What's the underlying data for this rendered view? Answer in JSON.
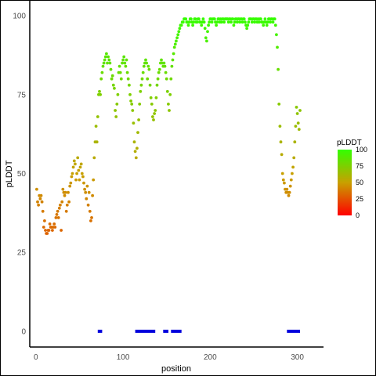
{
  "chart_data": {
    "type": "scatter",
    "xlabel": "position",
    "ylabel": "pLDDT",
    "xlim": [
      -7,
      330
    ],
    "ylim": [
      -5,
      105
    ],
    "xticks": [
      "0",
      "100",
      "200",
      "300"
    ],
    "yticks": [
      "0",
      "25",
      "50",
      "75",
      "100"
    ],
    "grid": false,
    "legend": {
      "title": "pLDDT",
      "placement": "right",
      "labels": [
        "100",
        "75",
        "50",
        "25",
        "0"
      ],
      "colors": {
        "low": "#ff0000",
        "mid": "#c8a000",
        "high": "#33ff00"
      }
    },
    "points": [
      [
        1,
        45
      ],
      [
        2,
        41
      ],
      [
        3,
        40
      ],
      [
        4,
        43
      ],
      [
        5,
        42
      ],
      [
        6,
        43
      ],
      [
        7,
        41
      ],
      [
        8,
        38
      ],
      [
        9,
        33
      ],
      [
        10,
        35
      ],
      [
        11,
        32
      ],
      [
        12,
        31
      ],
      [
        13,
        31
      ],
      [
        14,
        32
      ],
      [
        15,
        32
      ],
      [
        16,
        34
      ],
      [
        17,
        33
      ],
      [
        18,
        33
      ],
      [
        19,
        32
      ],
      [
        20,
        33
      ],
      [
        21,
        34
      ],
      [
        22,
        33
      ],
      [
        23,
        36
      ],
      [
        24,
        37
      ],
      [
        25,
        38
      ],
      [
        26,
        36
      ],
      [
        27,
        39
      ],
      [
        28,
        40
      ],
      [
        29,
        32
      ],
      [
        30,
        41
      ],
      [
        31,
        45
      ],
      [
        32,
        44
      ],
      [
        33,
        43
      ],
      [
        34,
        44
      ],
      [
        35,
        38
      ],
      [
        36,
        40
      ],
      [
        37,
        44
      ],
      [
        38,
        41
      ],
      [
        39,
        46
      ],
      [
        40,
        47
      ],
      [
        41,
        49
      ],
      [
        42,
        50
      ],
      [
        43,
        52
      ],
      [
        44,
        54
      ],
      [
        45,
        53
      ],
      [
        46,
        48
      ],
      [
        47,
        50
      ],
      [
        48,
        55
      ],
      [
        49,
        51
      ],
      [
        50,
        48
      ],
      [
        51,
        52
      ],
      [
        52,
        53
      ],
      [
        53,
        50
      ],
      [
        54,
        49
      ],
      [
        55,
        47
      ],
      [
        56,
        45
      ],
      [
        57,
        44
      ],
      [
        58,
        42
      ],
      [
        59,
        46
      ],
      [
        60,
        40
      ],
      [
        61,
        44
      ],
      [
        62,
        38
      ],
      [
        63,
        35
      ],
      [
        64,
        36
      ],
      [
        65,
        43
      ],
      [
        66,
        48
      ],
      [
        67,
        55
      ],
      [
        68,
        60
      ],
      [
        69,
        65
      ],
      [
        70,
        60
      ],
      [
        71,
        68
      ],
      [
        72,
        75
      ],
      [
        73,
        76
      ],
      [
        74,
        75
      ],
      [
        75,
        80
      ],
      [
        76,
        82
      ],
      [
        77,
        84
      ],
      [
        78,
        85
      ],
      [
        79,
        86
      ],
      [
        80,
        87
      ],
      [
        81,
        88
      ],
      [
        82,
        85
      ],
      [
        83,
        87
      ],
      [
        84,
        86
      ],
      [
        85,
        85
      ],
      [
        86,
        83
      ],
      [
        87,
        80
      ],
      [
        88,
        81
      ],
      [
        89,
        78
      ],
      [
        90,
        77
      ],
      [
        91,
        70
      ],
      [
        92,
        68
      ],
      [
        93,
        72
      ],
      [
        94,
        75
      ],
      [
        95,
        82
      ],
      [
        96,
        84
      ],
      [
        97,
        82
      ],
      [
        98,
        80
      ],
      [
        99,
        85
      ],
      [
        100,
        86
      ],
      [
        101,
        87
      ],
      [
        102,
        85
      ],
      [
        103,
        84
      ],
      [
        104,
        86
      ],
      [
        105,
        82
      ],
      [
        106,
        80
      ],
      [
        107,
        78
      ],
      [
        108,
        75
      ],
      [
        109,
        73
      ],
      [
        110,
        72
      ],
      [
        111,
        70
      ],
      [
        112,
        66
      ],
      [
        113,
        60
      ],
      [
        114,
        57
      ],
      [
        115,
        55
      ],
      [
        116,
        58
      ],
      [
        117,
        63
      ],
      [
        118,
        67
      ],
      [
        119,
        72
      ],
      [
        120,
        76
      ],
      [
        121,
        78
      ],
      [
        122,
        80
      ],
      [
        123,
        82
      ],
      [
        124,
        84
      ],
      [
        125,
        85
      ],
      [
        126,
        86
      ],
      [
        127,
        85
      ],
      [
        128,
        80
      ],
      [
        129,
        84
      ],
      [
        130,
        83
      ],
      [
        131,
        78
      ],
      [
        132,
        74
      ],
      [
        133,
        72
      ],
      [
        134,
        68
      ],
      [
        135,
        67
      ],
      [
        136,
        69
      ],
      [
        137,
        70
      ],
      [
        138,
        74
      ],
      [
        139,
        78
      ],
      [
        140,
        80
      ],
      [
        141,
        82
      ],
      [
        142,
        83
      ],
      [
        143,
        85
      ],
      [
        144,
        86
      ],
      [
        145,
        85
      ],
      [
        146,
        84
      ],
      [
        147,
        85
      ],
      [
        148,
        84
      ],
      [
        149,
        82
      ],
      [
        150,
        80
      ],
      [
        151,
        76
      ],
      [
        152,
        72
      ],
      [
        153,
        70
      ],
      [
        154,
        75
      ],
      [
        155,
        80
      ],
      [
        156,
        84
      ],
      [
        157,
        86
      ],
      [
        158,
        88
      ],
      [
        159,
        90
      ],
      [
        160,
        91
      ],
      [
        161,
        92
      ],
      [
        162,
        93
      ],
      [
        163,
        94
      ],
      [
        164,
        95
      ],
      [
        165,
        96
      ],
      [
        166,
        97
      ],
      [
        167,
        97
      ],
      [
        168,
        98
      ],
      [
        169,
        98
      ],
      [
        170,
        99
      ],
      [
        171,
        99
      ],
      [
        172,
        99
      ],
      [
        173,
        98
      ],
      [
        174,
        98
      ],
      [
        175,
        97
      ],
      [
        176,
        98
      ],
      [
        177,
        99
      ],
      [
        178,
        99
      ],
      [
        179,
        98
      ],
      [
        180,
        97
      ],
      [
        181,
        98
      ],
      [
        182,
        99
      ],
      [
        183,
        99
      ],
      [
        184,
        98
      ],
      [
        185,
        98
      ],
      [
        186,
        99
      ],
      [
        187,
        99
      ],
      [
        188,
        98
      ],
      [
        189,
        98
      ],
      [
        190,
        97
      ],
      [
        191,
        98
      ],
      [
        192,
        99
      ],
      [
        193,
        98
      ],
      [
        194,
        96
      ],
      [
        195,
        93
      ],
      [
        196,
        92
      ],
      [
        197,
        95
      ],
      [
        198,
        97
      ],
      [
        199,
        98
      ],
      [
        200,
        99
      ],
      [
        201,
        99
      ],
      [
        202,
        98
      ],
      [
        203,
        99
      ],
      [
        204,
        99
      ],
      [
        205,
        99
      ],
      [
        206,
        98
      ],
      [
        207,
        97
      ],
      [
        208,
        98
      ],
      [
        209,
        99
      ],
      [
        210,
        99
      ],
      [
        211,
        98
      ],
      [
        212,
        99
      ],
      [
        213,
        98
      ],
      [
        214,
        99
      ],
      [
        215,
        99
      ],
      [
        216,
        98
      ],
      [
        217,
        99
      ],
      [
        218,
        99
      ],
      [
        219,
        99
      ],
      [
        220,
        99
      ],
      [
        221,
        98
      ],
      [
        222,
        99
      ],
      [
        223,
        99
      ],
      [
        224,
        98
      ],
      [
        225,
        99
      ],
      [
        226,
        99
      ],
      [
        227,
        97
      ],
      [
        228,
        98
      ],
      [
        229,
        99
      ],
      [
        230,
        99
      ],
      [
        231,
        98
      ],
      [
        232,
        99
      ],
      [
        233,
        99
      ],
      [
        234,
        98
      ],
      [
        235,
        99
      ],
      [
        236,
        99
      ],
      [
        237,
        98
      ],
      [
        238,
        99
      ],
      [
        239,
        99
      ],
      [
        240,
        98
      ],
      [
        241,
        97
      ],
      [
        242,
        96
      ],
      [
        243,
        97
      ],
      [
        244,
        98
      ],
      [
        245,
        99
      ],
      [
        246,
        99
      ],
      [
        247,
        99
      ],
      [
        248,
        98
      ],
      [
        249,
        99
      ],
      [
        250,
        99
      ],
      [
        251,
        98
      ],
      [
        252,
        99
      ],
      [
        253,
        99
      ],
      [
        254,
        98
      ],
      [
        255,
        99
      ],
      [
        256,
        98
      ],
      [
        257,
        99
      ],
      [
        258,
        99
      ],
      [
        259,
        98
      ],
      [
        260,
        98
      ],
      [
        261,
        97
      ],
      [
        262,
        98
      ],
      [
        263,
        99
      ],
      [
        264,
        98
      ],
      [
        265,
        97
      ],
      [
        266,
        98
      ],
      [
        267,
        99
      ],
      [
        268,
        99
      ],
      [
        269,
        98
      ],
      [
        270,
        99
      ],
      [
        271,
        99
      ],
      [
        272,
        98
      ],
      [
        273,
        99
      ],
      [
        274,
        99
      ],
      [
        275,
        97
      ],
      [
        276,
        94
      ],
      [
        277,
        90
      ],
      [
        278,
        83
      ],
      [
        279,
        72
      ],
      [
        280,
        65
      ],
      [
        281,
        60
      ],
      [
        282,
        56
      ],
      [
        283,
        50
      ],
      [
        284,
        48
      ],
      [
        285,
        47
      ],
      [
        286,
        45
      ],
      [
        287,
        44
      ],
      [
        288,
        45
      ],
      [
        289,
        44
      ],
      [
        290,
        43
      ],
      [
        291,
        44
      ],
      [
        292,
        46
      ],
      [
        293,
        48
      ],
      [
        294,
        50
      ],
      [
        295,
        52
      ],
      [
        296,
        55
      ],
      [
        297,
        60
      ],
      [
        298,
        65
      ],
      [
        299,
        71
      ],
      [
        300,
        69
      ],
      [
        301,
        66
      ],
      [
        302,
        64
      ],
      [
        303,
        70
      ]
    ],
    "bands": [
      [
        71,
        76
      ],
      [
        114,
        137
      ],
      [
        146,
        152
      ],
      [
        155,
        167
      ],
      [
        288,
        303
      ]
    ],
    "band_color": "#0000dd"
  }
}
